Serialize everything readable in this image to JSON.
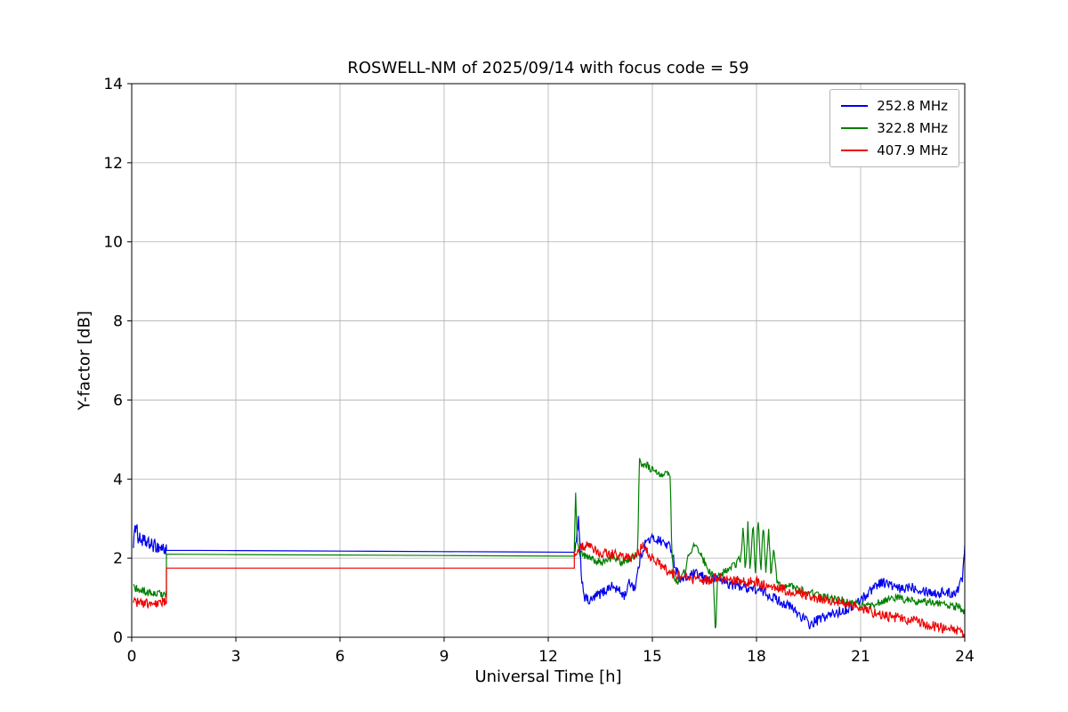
{
  "figure": {
    "kind": "matplotlib-line-plot",
    "background": "#ffffff",
    "grid_color": "#b0b0b0",
    "axis_color": "#000000"
  },
  "chart_data": {
    "type": "line",
    "title": "ROSWELL-NM of 2025/09/14 with focus code = 59",
    "xlabel": "Universal Time [h]",
    "ylabel": "Y-factor [dB]",
    "xlim": [
      0,
      24
    ],
    "ylim": [
      0,
      14
    ],
    "xticks": [
      0,
      3,
      6,
      9,
      12,
      15,
      18,
      21,
      24
    ],
    "yticks": [
      0,
      2,
      4,
      6,
      8,
      10,
      12,
      14
    ],
    "grid": true,
    "legend_position": "upper right",
    "series": [
      {
        "name": "252.8 MHz",
        "color": "#0000ee",
        "segments": [
          {
            "noise": 0.17,
            "step": 0.015,
            "points": [
              [
                0.05,
                2.4
              ],
              [
                0.1,
                2.7
              ],
              [
                0.13,
                3.0
              ],
              [
                0.18,
                2.5
              ],
              [
                0.3,
                2.45
              ],
              [
                0.5,
                2.35
              ],
              [
                0.7,
                2.3
              ],
              [
                0.9,
                2.25
              ],
              [
                1.0,
                2.2
              ]
            ]
          },
          {
            "noise": 0,
            "step": 2,
            "points": [
              [
                1.0,
                2.2
              ],
              [
                12.75,
                2.15
              ]
            ]
          },
          {
            "noise": 0.13,
            "step": 0.02,
            "points": [
              [
                12.75,
                2.1
              ],
              [
                12.8,
                2.3
              ],
              [
                12.87,
                3.0
              ],
              [
                12.95,
                1.6
              ],
              [
                13.05,
                1.0
              ],
              [
                13.2,
                0.9
              ],
              [
                13.4,
                1.05
              ],
              [
                13.6,
                1.15
              ],
              [
                13.8,
                1.3
              ],
              [
                14.0,
                1.2
              ],
              [
                14.2,
                1.05
              ],
              [
                14.35,
                1.4
              ],
              [
                14.5,
                1.25
              ],
              [
                14.65,
                2.0
              ],
              [
                14.8,
                2.4
              ],
              [
                15.0,
                2.5
              ],
              [
                15.2,
                2.45
              ],
              [
                15.4,
                2.35
              ],
              [
                15.55,
                2.25
              ],
              [
                15.65,
                1.8
              ],
              [
                15.8,
                1.45
              ],
              [
                16.0,
                1.5
              ],
              [
                16.2,
                1.6
              ],
              [
                16.4,
                1.55
              ],
              [
                16.6,
                1.45
              ],
              [
                16.8,
                1.5
              ],
              [
                17.0,
                1.45
              ],
              [
                17.2,
                1.35
              ],
              [
                17.5,
                1.3
              ],
              [
                17.8,
                1.25
              ],
              [
                18.0,
                1.2
              ],
              [
                18.2,
                1.15
              ],
              [
                18.5,
                1.0
              ],
              [
                18.8,
                0.85
              ],
              [
                19.0,
                0.75
              ],
              [
                19.2,
                0.6
              ],
              [
                19.4,
                0.45
              ],
              [
                19.55,
                0.3
              ],
              [
                19.7,
                0.4
              ],
              [
                19.9,
                0.5
              ],
              [
                20.1,
                0.55
              ],
              [
                20.4,
                0.65
              ],
              [
                20.7,
                0.75
              ],
              [
                21.0,
                0.95
              ],
              [
                21.2,
                1.1
              ],
              [
                21.4,
                1.3
              ],
              [
                21.6,
                1.4
              ],
              [
                21.8,
                1.35
              ],
              [
                22.0,
                1.25
              ],
              [
                22.2,
                1.2
              ],
              [
                22.4,
                1.3
              ],
              [
                22.6,
                1.25
              ],
              [
                22.8,
                1.2
              ],
              [
                23.0,
                1.15
              ],
              [
                23.2,
                1.1
              ],
              [
                23.4,
                1.15
              ],
              [
                23.6,
                1.1
              ],
              [
                23.8,
                1.2
              ],
              [
                23.93,
                1.5
              ],
              [
                24.0,
                2.3
              ]
            ]
          }
        ]
      },
      {
        "name": "322.8 MHz",
        "color": "#007f00",
        "segments": [
          {
            "noise": 0.1,
            "step": 0.015,
            "points": [
              [
                0.05,
                1.25
              ],
              [
                0.2,
                1.2
              ],
              [
                0.4,
                1.15
              ],
              [
                0.6,
                1.1
              ],
              [
                0.8,
                1.1
              ],
              [
                1.0,
                1.1
              ]
            ]
          },
          {
            "noise": 0,
            "step": 2,
            "points": [
              [
                1.0,
                2.1
              ],
              [
                12.75,
                2.05
              ]
            ]
          },
          {
            "noise": 0.1,
            "step": 0.02,
            "points": [
              [
                12.75,
                2.2
              ],
              [
                12.79,
                3.6
              ],
              [
                12.83,
                2.6
              ],
              [
                12.9,
                2.1
              ],
              [
                13.1,
                2.05
              ],
              [
                13.3,
                1.95
              ],
              [
                13.5,
                1.9
              ],
              [
                13.7,
                1.95
              ],
              [
                13.9,
                2.0
              ],
              [
                14.1,
                1.9
              ],
              [
                14.3,
                1.95
              ],
              [
                14.45,
                2.05
              ],
              [
                14.58,
                2.1
              ],
              [
                14.62,
                4.5
              ],
              [
                14.7,
                4.35
              ],
              [
                14.8,
                4.4
              ],
              [
                14.95,
                4.25
              ],
              [
                15.1,
                4.15
              ],
              [
                15.25,
                4.1
              ],
              [
                15.35,
                4.2
              ],
              [
                15.45,
                4.15
              ],
              [
                15.52,
                4.0
              ],
              [
                15.56,
                2.1
              ],
              [
                15.62,
                1.6
              ],
              [
                15.7,
                1.35
              ],
              [
                15.8,
                1.45
              ],
              [
                15.9,
                1.6
              ],
              [
                16.0,
                1.9
              ],
              [
                16.1,
                2.2
              ],
              [
                16.2,
                2.3
              ],
              [
                16.3,
                2.25
              ],
              [
                16.45,
                2.0
              ],
              [
                16.6,
                1.7
              ],
              [
                16.75,
                1.55
              ],
              [
                16.82,
                0.05
              ],
              [
                16.88,
                1.5
              ],
              [
                17.0,
                1.6
              ],
              [
                17.2,
                1.7
              ],
              [
                17.4,
                1.85
              ],
              [
                17.55,
                2.0
              ],
              [
                17.62,
                2.8
              ],
              [
                17.68,
                1.6
              ],
              [
                17.75,
                2.85
              ],
              [
                17.82,
                1.65
              ],
              [
                17.9,
                2.95
              ],
              [
                17.97,
                1.6
              ],
              [
                18.05,
                3.0
              ],
              [
                18.12,
                1.6
              ],
              [
                18.2,
                2.9
              ],
              [
                18.27,
                1.55
              ],
              [
                18.35,
                2.8
              ],
              [
                18.42,
                1.5
              ],
              [
                18.5,
                2.3
              ],
              [
                18.58,
                1.45
              ],
              [
                18.7,
                1.35
              ],
              [
                18.9,
                1.3
              ],
              [
                19.1,
                1.25
              ],
              [
                19.4,
                1.15
              ],
              [
                19.7,
                1.1
              ],
              [
                20.0,
                1.0
              ],
              [
                20.4,
                0.95
              ],
              [
                20.8,
                0.85
              ],
              [
                21.2,
                0.8
              ],
              [
                21.6,
                0.9
              ],
              [
                22.0,
                1.0
              ],
              [
                22.3,
                0.95
              ],
              [
                22.6,
                0.9
              ],
              [
                23.0,
                0.9
              ],
              [
                23.3,
                0.85
              ],
              [
                23.6,
                0.8
              ],
              [
                23.85,
                0.75
              ],
              [
                24.0,
                0.6
              ]
            ]
          }
        ]
      },
      {
        "name": "407.9 MHz",
        "color": "#ee0000",
        "segments": [
          {
            "noise": 0.12,
            "step": 0.015,
            "points": [
              [
                0.05,
                0.9
              ],
              [
                0.3,
                0.85
              ],
              [
                0.6,
                0.85
              ],
              [
                0.85,
                0.9
              ],
              [
                1.0,
                0.9
              ]
            ]
          },
          {
            "noise": 0,
            "step": 2,
            "points": [
              [
                1.0,
                1.75
              ],
              [
                12.75,
                1.75
              ]
            ]
          },
          {
            "noise": 0.13,
            "step": 0.02,
            "points": [
              [
                12.75,
                2.15
              ],
              [
                12.9,
                2.25
              ],
              [
                13.1,
                2.3
              ],
              [
                13.3,
                2.2
              ],
              [
                13.5,
                2.15
              ],
              [
                13.8,
                2.1
              ],
              [
                14.1,
                2.05
              ],
              [
                14.4,
                2.0
              ],
              [
                14.6,
                2.1
              ],
              [
                14.72,
                2.35
              ],
              [
                14.85,
                2.15
              ],
              [
                15.0,
                2.0
              ],
              [
                15.2,
                1.85
              ],
              [
                15.4,
                1.7
              ],
              [
                15.6,
                1.6
              ],
              [
                15.8,
                1.55
              ],
              [
                16.0,
                1.5
              ],
              [
                16.3,
                1.45
              ],
              [
                16.6,
                1.45
              ],
              [
                17.0,
                1.5
              ],
              [
                17.3,
                1.45
              ],
              [
                17.6,
                1.4
              ],
              [
                18.0,
                1.4
              ],
              [
                18.3,
                1.3
              ],
              [
                18.6,
                1.25
              ],
              [
                19.0,
                1.15
              ],
              [
                19.3,
                1.1
              ],
              [
                19.6,
                1.0
              ],
              [
                20.0,
                0.95
              ],
              [
                20.3,
                0.9
              ],
              [
                20.6,
                0.85
              ],
              [
                21.0,
                0.75
              ],
              [
                21.3,
                0.65
              ],
              [
                21.6,
                0.55
              ],
              [
                22.0,
                0.5
              ],
              [
                22.3,
                0.45
              ],
              [
                22.6,
                0.4
              ],
              [
                23.0,
                0.3
              ],
              [
                23.3,
                0.25
              ],
              [
                23.6,
                0.2
              ],
              [
                23.8,
                0.15
              ],
              [
                24.0,
                0.08
              ]
            ]
          }
        ]
      }
    ]
  }
}
